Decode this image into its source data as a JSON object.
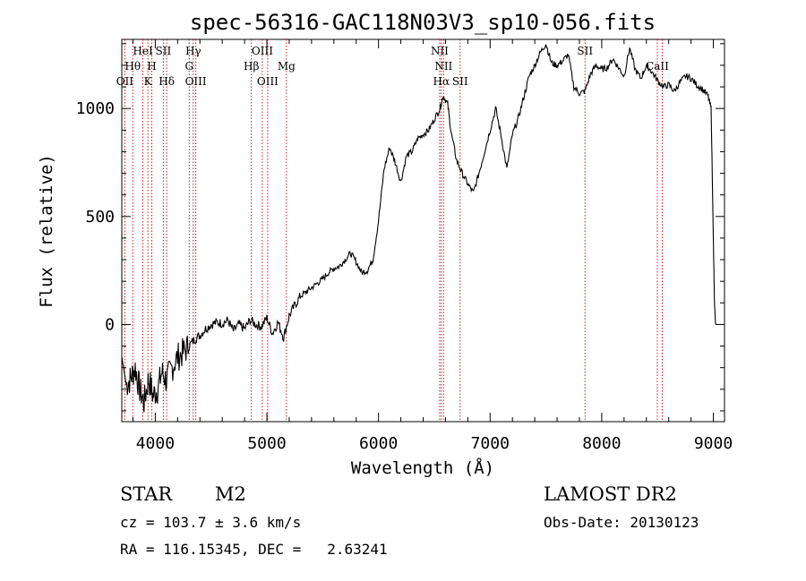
{
  "chart_data": {
    "type": "line",
    "title": "spec-56316-GAC118N03V3_sp10-056.fits",
    "xlabel": "Wavelength (Å)",
    "ylabel": "Flux (relative)",
    "xlim": [
      3700,
      9100
    ],
    "ylim": [
      -450,
      1320
    ],
    "x_ticks": [
      4000,
      5000,
      6000,
      7000,
      8000,
      9000
    ],
    "y_ticks": [
      0,
      500,
      1000
    ],
    "grid": false,
    "line_color": "#000000",
    "marker_color": "#cc0000",
    "spectrum": {
      "x": [
        3700,
        3740,
        3780,
        3820,
        3860,
        3900,
        3940,
        3980,
        4020,
        4060,
        4100,
        4150,
        4200,
        4250,
        4300,
        4350,
        4400,
        4450,
        4500,
        4550,
        4600,
        4650,
        4700,
        4750,
        4800,
        4850,
        4900,
        4950,
        5000,
        5050,
        5100,
        5150,
        5200,
        5250,
        5300,
        5350,
        5400,
        5450,
        5500,
        5550,
        5600,
        5650,
        5700,
        5750,
        5800,
        5850,
        5900,
        5950,
        6000,
        6050,
        6100,
        6150,
        6200,
        6250,
        6300,
        6350,
        6400,
        6450,
        6500,
        6550,
        6580,
        6620,
        6650,
        6700,
        6750,
        6800,
        6850,
        6900,
        6950,
        7000,
        7050,
        7100,
        7150,
        7200,
        7250,
        7300,
        7350,
        7400,
        7450,
        7500,
        7550,
        7600,
        7650,
        7700,
        7750,
        7800,
        7850,
        7900,
        7950,
        8000,
        8050,
        8100,
        8150,
        8200,
        8250,
        8300,
        8350,
        8400,
        8450,
        8500,
        8550,
        8600,
        8650,
        8700,
        8750,
        8800,
        8850,
        8900,
        8950,
        8980,
        9000,
        9010,
        9020
      ],
      "y": [
        -150,
        -280,
        -250,
        -200,
        -300,
        -360,
        -250,
        -330,
        -300,
        -220,
        -260,
        -200,
        -150,
        -130,
        -100,
        -70,
        -50,
        -20,
        0,
        10,
        5,
        20,
        -30,
        0,
        -20,
        20,
        0,
        -10,
        30,
        -40,
        10,
        -60,
        40,
        90,
        130,
        150,
        170,
        190,
        210,
        240,
        260,
        270,
        300,
        330,
        290,
        240,
        250,
        300,
        480,
        720,
        820,
        750,
        660,
        780,
        800,
        860,
        880,
        900,
        950,
        1000,
        1060,
        1020,
        890,
        760,
        700,
        650,
        610,
        700,
        800,
        900,
        1000,
        870,
        720,
        880,
        950,
        1050,
        1150,
        1200,
        1260,
        1300,
        1210,
        1200,
        1220,
        1250,
        1100,
        1070,
        1080,
        1160,
        1200,
        1180,
        1190,
        1230,
        1190,
        1150,
        1280,
        1180,
        1140,
        1200,
        1170,
        1130,
        1100,
        1110,
        1080,
        1120,
        1150,
        1140,
        1110,
        1090,
        1060,
        1000,
        400,
        100,
        0
      ]
    },
    "lines": [
      {
        "label": "Hθ",
        "x": 3798,
        "row": 1
      },
      {
        "label": "OII",
        "x": 3727,
        "row": 2
      },
      {
        "label": "HeI",
        "x": 3889,
        "row": 0
      },
      {
        "label": "SII",
        "x": 4072,
        "row": 0
      },
      {
        "label": "H",
        "x": 3969,
        "row": 1
      },
      {
        "label": "K",
        "x": 3934,
        "row": 2
      },
      {
        "label": "Hδ",
        "x": 4102,
        "row": 2
      },
      {
        "label": "Hγ",
        "x": 4340,
        "row": 0
      },
      {
        "label": "G",
        "x": 4304,
        "row": 1
      },
      {
        "label": "OIII",
        "x": 4363,
        "row": 2
      },
      {
        "label": "OIII",
        "x": 4959,
        "row": 0
      },
      {
        "label": "Hβ",
        "x": 4861,
        "row": 1
      },
      {
        "label": "OIII",
        "x": 5007,
        "row": 2
      },
      {
        "label": "Mg",
        "x": 5175,
        "row": 1
      },
      {
        "label": "NII",
        "x": 6548,
        "row": 0
      },
      {
        "label": "NII",
        "x": 6583,
        "row": 1
      },
      {
        "label": "Hα",
        "x": 6563,
        "row": 2
      },
      {
        "label": "SII",
        "x": 6731,
        "row": 2
      },
      {
        "label": "SII",
        "x": 7850,
        "row": 0
      },
      {
        "label": "CaII",
        "x": 8498,
        "row": 1
      },
      {
        "label": "CaII",
        "x": 8542,
        "row": 1
      }
    ]
  },
  "footer": {
    "class_label": "STAR",
    "subclass": "M2",
    "cz": "cz = 103.7 ± 3.6 km/s",
    "coords": "RA = 116.15345, DEC =   2.63241",
    "survey": "LAMOST DR2",
    "obs_date": "Obs-Date: 20130123"
  }
}
